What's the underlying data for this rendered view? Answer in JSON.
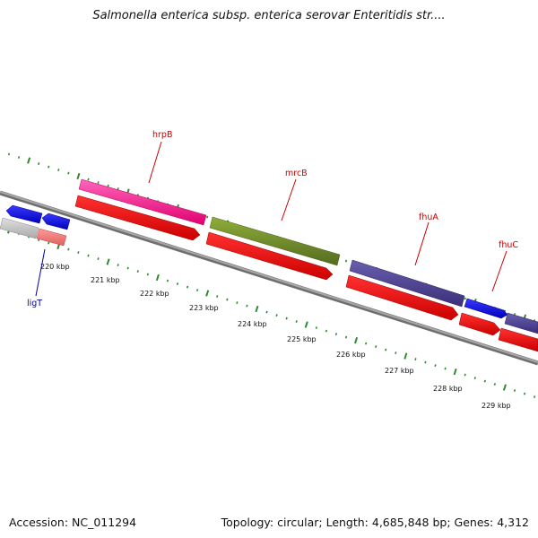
{
  "title": "Salmonella enterica subsp. enterica serovar Enteritidis str....",
  "accession_text": "Accession: NC_011294",
  "summary_text": "Topology: circular; Length: 4,685,848 bp; Genes: 4,312",
  "scale_labels": [
    "220 kbp",
    "221 kbp",
    "222 kbp",
    "223 kbp",
    "224 kbp",
    "225 kbp",
    "226 kbp",
    "227 kbp",
    "228 kbp",
    "229 kbp"
  ],
  "gene_labels": [
    {
      "name": "hrpB",
      "color": "#cc0000"
    },
    {
      "name": "mrcB",
      "color": "#cc0000"
    },
    {
      "name": "fhuA",
      "color": "#cc0000"
    },
    {
      "name": "fhuC",
      "color": "#cc0000"
    },
    {
      "name": "ligT",
      "color": "#0000aa"
    }
  ],
  "colors": {
    "backbone": "#808080",
    "cds": "#ff0000",
    "hrpB": "#ff3399",
    "mrcB": "#6b8e23",
    "fhuA": "#4b3f8c",
    "fhuC": "#0000ff",
    "ligT": "#0000ff",
    "tick": "#2e8b2e"
  }
}
